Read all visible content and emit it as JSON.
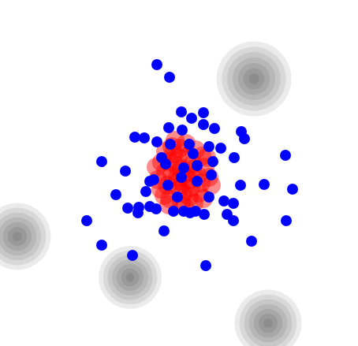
{
  "chart_data": {
    "type": "scatter",
    "xlim": [
      0,
      454
    ],
    "ylim": [
      439,
      0
    ],
    "tick_labels": false,
    "grid": false,
    "series": [
      {
        "type": "bubble",
        "color": "#000000",
        "marker": "circle",
        "x": [
          322,
          22,
          165,
          340
        ],
        "y": [
          100,
          300,
          352,
          410
        ],
        "sizes": [
          95,
          85,
          80,
          85
        ]
      },
      {
        "type": "scatter",
        "color": "#ff0000",
        "marker": "circle",
        "x": [
          230,
          215,
          245,
          225,
          238,
          210,
          250,
          220,
          232,
          205,
          260,
          228,
          242,
          212,
          255,
          218,
          236,
          200,
          265,
          224,
          248,
          208,
          240,
          230,
          215,
          252,
          222,
          235,
          198,
          262,
          226,
          244,
          210,
          256,
          232,
          218,
          240,
          228,
          204,
          268,
          234,
          246,
          214,
          258,
          226
        ],
        "y": [
          215,
          205,
          208,
          225,
          198,
          218,
          222,
          195,
          232,
          206,
          212,
          240,
          238,
          235,
          232,
          186,
          182,
          228,
          225,
          210,
          190,
          248,
          250,
          256,
          252,
          245,
          178,
          220,
          212,
          200,
          200,
          215,
          192,
          198,
          245,
          222,
          228,
          188,
          240,
          235,
          262,
          258,
          260,
          252,
          230
        ]
      },
      {
        "type": "scatter",
        "color": "#0000ff",
        "marker": "circle",
        "x": [
          199,
          215,
          230,
          258,
          243,
          272,
          258,
          214,
          231,
          171,
          183,
          306,
          310,
          199,
          216,
          240,
          265,
          280,
          362,
          297,
          129,
          159,
          210,
          250,
          233,
          195,
          268,
          305,
          335,
          371,
          147,
          185,
          213,
          250,
          284,
          296,
          162,
          176,
          175,
          198,
          220,
          241,
          248,
          259,
          288,
          296,
          110,
          363,
          208,
          319,
          129,
          168,
          261,
          190,
          225,
          265,
          230,
          205,
          270,
          245,
          190,
          233
        ],
        "y": [
          82,
          98,
          142,
          143,
          150,
          163,
          158,
          162,
          165,
          174,
          175,
          167,
          176,
          180,
          183,
          183,
          186,
          188,
          197,
          200,
          205,
          217,
          208,
          210,
          213,
          228,
          222,
          235,
          234,
          240,
          247,
          243,
          235,
          230,
          255,
          258,
          264,
          263,
          270,
          265,
          268,
          270,
          268,
          272,
          272,
          280,
          280,
          280,
          293,
          306,
          311,
          324,
          337,
          230,
          250,
          250,
          225,
          200,
          205,
          195,
          262,
          268
        ]
      }
    ]
  }
}
